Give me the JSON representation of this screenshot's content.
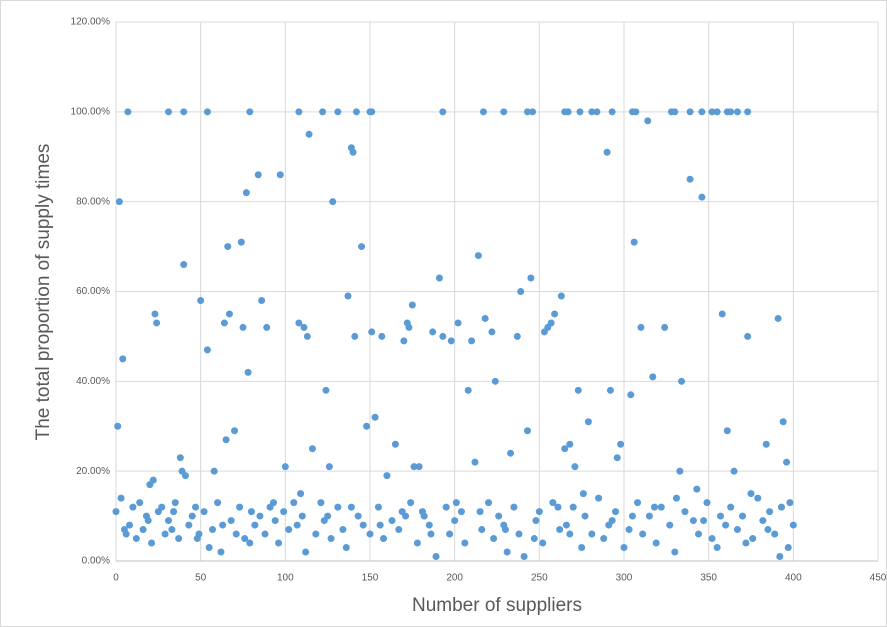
{
  "chart_data": {
    "type": "scatter",
    "x_label": "Number of suppliers",
    "y_label": "The total proportion of supply times",
    "xlim": [
      0,
      450
    ],
    "xticks": [
      0,
      50,
      100,
      150,
      200,
      250,
      300,
      350,
      400,
      450
    ],
    "ylim": [
      0,
      120
    ],
    "yticks": [
      {
        "value": 0,
        "label": "0.00%"
      },
      {
        "value": 20,
        "label": "20.00%"
      },
      {
        "value": 40,
        "label": "40.00%"
      },
      {
        "value": 60,
        "label": "60.00%"
      },
      {
        "value": 80,
        "label": "80.00%"
      },
      {
        "value": 100,
        "label": "100.00%"
      },
      {
        "value": 120,
        "label": "120.00%"
      }
    ],
    "grid": true,
    "series": [
      {
        "color": "#5b9bd5",
        "x": [
          7,
          31,
          40,
          54,
          79,
          108,
          122,
          131,
          142,
          150,
          151,
          193,
          217,
          229,
          243,
          246,
          265,
          267,
          274,
          281,
          284,
          293,
          305,
          307,
          328,
          330,
          339,
          346,
          352,
          355,
          361,
          363,
          367,
          373,
          2,
          4,
          1,
          0,
          40,
          38,
          39,
          41,
          22,
          20,
          23,
          24,
          50,
          54,
          58,
          65,
          66,
          67,
          64,
          70,
          74,
          75,
          77,
          78,
          84,
          86,
          89,
          97,
          100,
          108,
          111,
          113,
          114,
          116,
          124,
          126,
          128,
          137,
          139,
          140,
          141,
          145,
          148,
          151,
          153,
          157,
          160,
          165,
          170,
          172,
          173,
          175,
          176,
          179,
          187,
          191,
          193,
          198,
          202,
          208,
          210,
          214,
          212,
          218,
          222,
          224,
          233,
          237,
          239,
          243,
          245,
          253,
          255,
          257,
          259,
          263,
          265,
          268,
          271,
          273,
          279,
          290,
          292,
          296,
          298,
          304,
          306,
          310,
          314,
          317,
          324,
          333,
          334,
          339,
          346,
          358,
          361,
          365,
          373,
          384,
          391,
          394,
          396,
          3,
          6,
          8,
          10,
          12,
          14,
          16,
          18,
          21,
          25,
          27,
          29,
          31,
          33,
          35,
          37,
          43,
          45,
          47,
          49,
          52,
          55,
          57,
          60,
          62,
          68,
          71,
          73,
          76,
          80,
          82,
          85,
          88,
          91,
          94,
          96,
          99,
          102,
          105,
          107,
          110,
          112,
          118,
          121,
          123,
          127,
          131,
          134,
          136,
          143,
          146,
          150,
          155,
          158,
          163,
          167,
          169,
          174,
          178,
          182,
          185,
          189,
          195,
          197,
          200,
          204,
          206,
          216,
          220,
          223,
          226,
          229,
          231,
          235,
          238,
          241,
          248,
          250,
          252,
          258,
          262,
          266,
          270,
          275,
          277,
          281,
          285,
          288,
          293,
          295,
          300,
          303,
          308,
          311,
          315,
          319,
          322,
          327,
          330,
          336,
          341,
          344,
          349,
          352,
          355,
          363,
          367,
          370,
          376,
          379,
          382,
          386,
          389,
          393,
          397,
          400,
          392,
          375,
          357,
          343,
          5,
          19,
          34,
          48,
          63,
          79,
          93,
          109,
          125,
          139,
          156,
          171,
          186,
          201,
          215,
          230,
          247,
          261,
          276,
          291,
          305,
          318,
          331,
          347,
          360,
          372,
          385,
          398,
          268,
          181
        ],
        "values": [
          100,
          100,
          100,
          100,
          100,
          100,
          100,
          100,
          100,
          100,
          100,
          100,
          100,
          100,
          100,
          100,
          100,
          100,
          100,
          100,
          100,
          100,
          100,
          100,
          100,
          100,
          100,
          100,
          100,
          100,
          100,
          100,
          100,
          100,
          80,
          45,
          30,
          11,
          66,
          23,
          20,
          19,
          18,
          17,
          55,
          53,
          58,
          47,
          20,
          27,
          70,
          55,
          53,
          29,
          71,
          52,
          82,
          42,
          86,
          58,
          52,
          86,
          21,
          53,
          52,
          50,
          95,
          25,
          38,
          21,
          80,
          59,
          92,
          91,
          50,
          70,
          30,
          51,
          32,
          50,
          19,
          26,
          49,
          53,
          52,
          57,
          21,
          21,
          51,
          63,
          50,
          49,
          53,
          38,
          49,
          68,
          22,
          54,
          51,
          40,
          24,
          50,
          60,
          29,
          63,
          51,
          52,
          53,
          55,
          59,
          25,
          26,
          21,
          38,
          31,
          91,
          38,
          23,
          26,
          37,
          71,
          52,
          98,
          41,
          52,
          20,
          40,
          85,
          81,
          55,
          29,
          20,
          50,
          26,
          54,
          31,
          22,
          14,
          6,
          8,
          12,
          5,
          13,
          7,
          10,
          4,
          11,
          12,
          6,
          9,
          7,
          13,
          5,
          8,
          10,
          12,
          6,
          11,
          3,
          7,
          13,
          2,
          9,
          6,
          12,
          5,
          11,
          8,
          10,
          6,
          12,
          9,
          4,
          11,
          7,
          13,
          8,
          10,
          2,
          6,
          13,
          9,
          5,
          12,
          7,
          3,
          10,
          8,
          6,
          12,
          5,
          9,
          7,
          11,
          13,
          4,
          10,
          8,
          1,
          12,
          6,
          9,
          11,
          4,
          7,
          13,
          5,
          10,
          8,
          2,
          12,
          6,
          1,
          9,
          11,
          4,
          13,
          7,
          8,
          12,
          3,
          10,
          6,
          14,
          5,
          9,
          11,
          3,
          7,
          13,
          6,
          10,
          4,
          12,
          8,
          2,
          11,
          9,
          6,
          13,
          5,
          3,
          12,
          7,
          10,
          5,
          14,
          9,
          11,
          6,
          12,
          3,
          8,
          1,
          15,
          10,
          16,
          7,
          9,
          11,
          5,
          8,
          4,
          13,
          15,
          10,
          12,
          8,
          10,
          6,
          13,
          11,
          7,
          5,
          12,
          15,
          8,
          10,
          12,
          14,
          9,
          8,
          4,
          7,
          13,
          6,
          11
        ]
      }
    ]
  }
}
